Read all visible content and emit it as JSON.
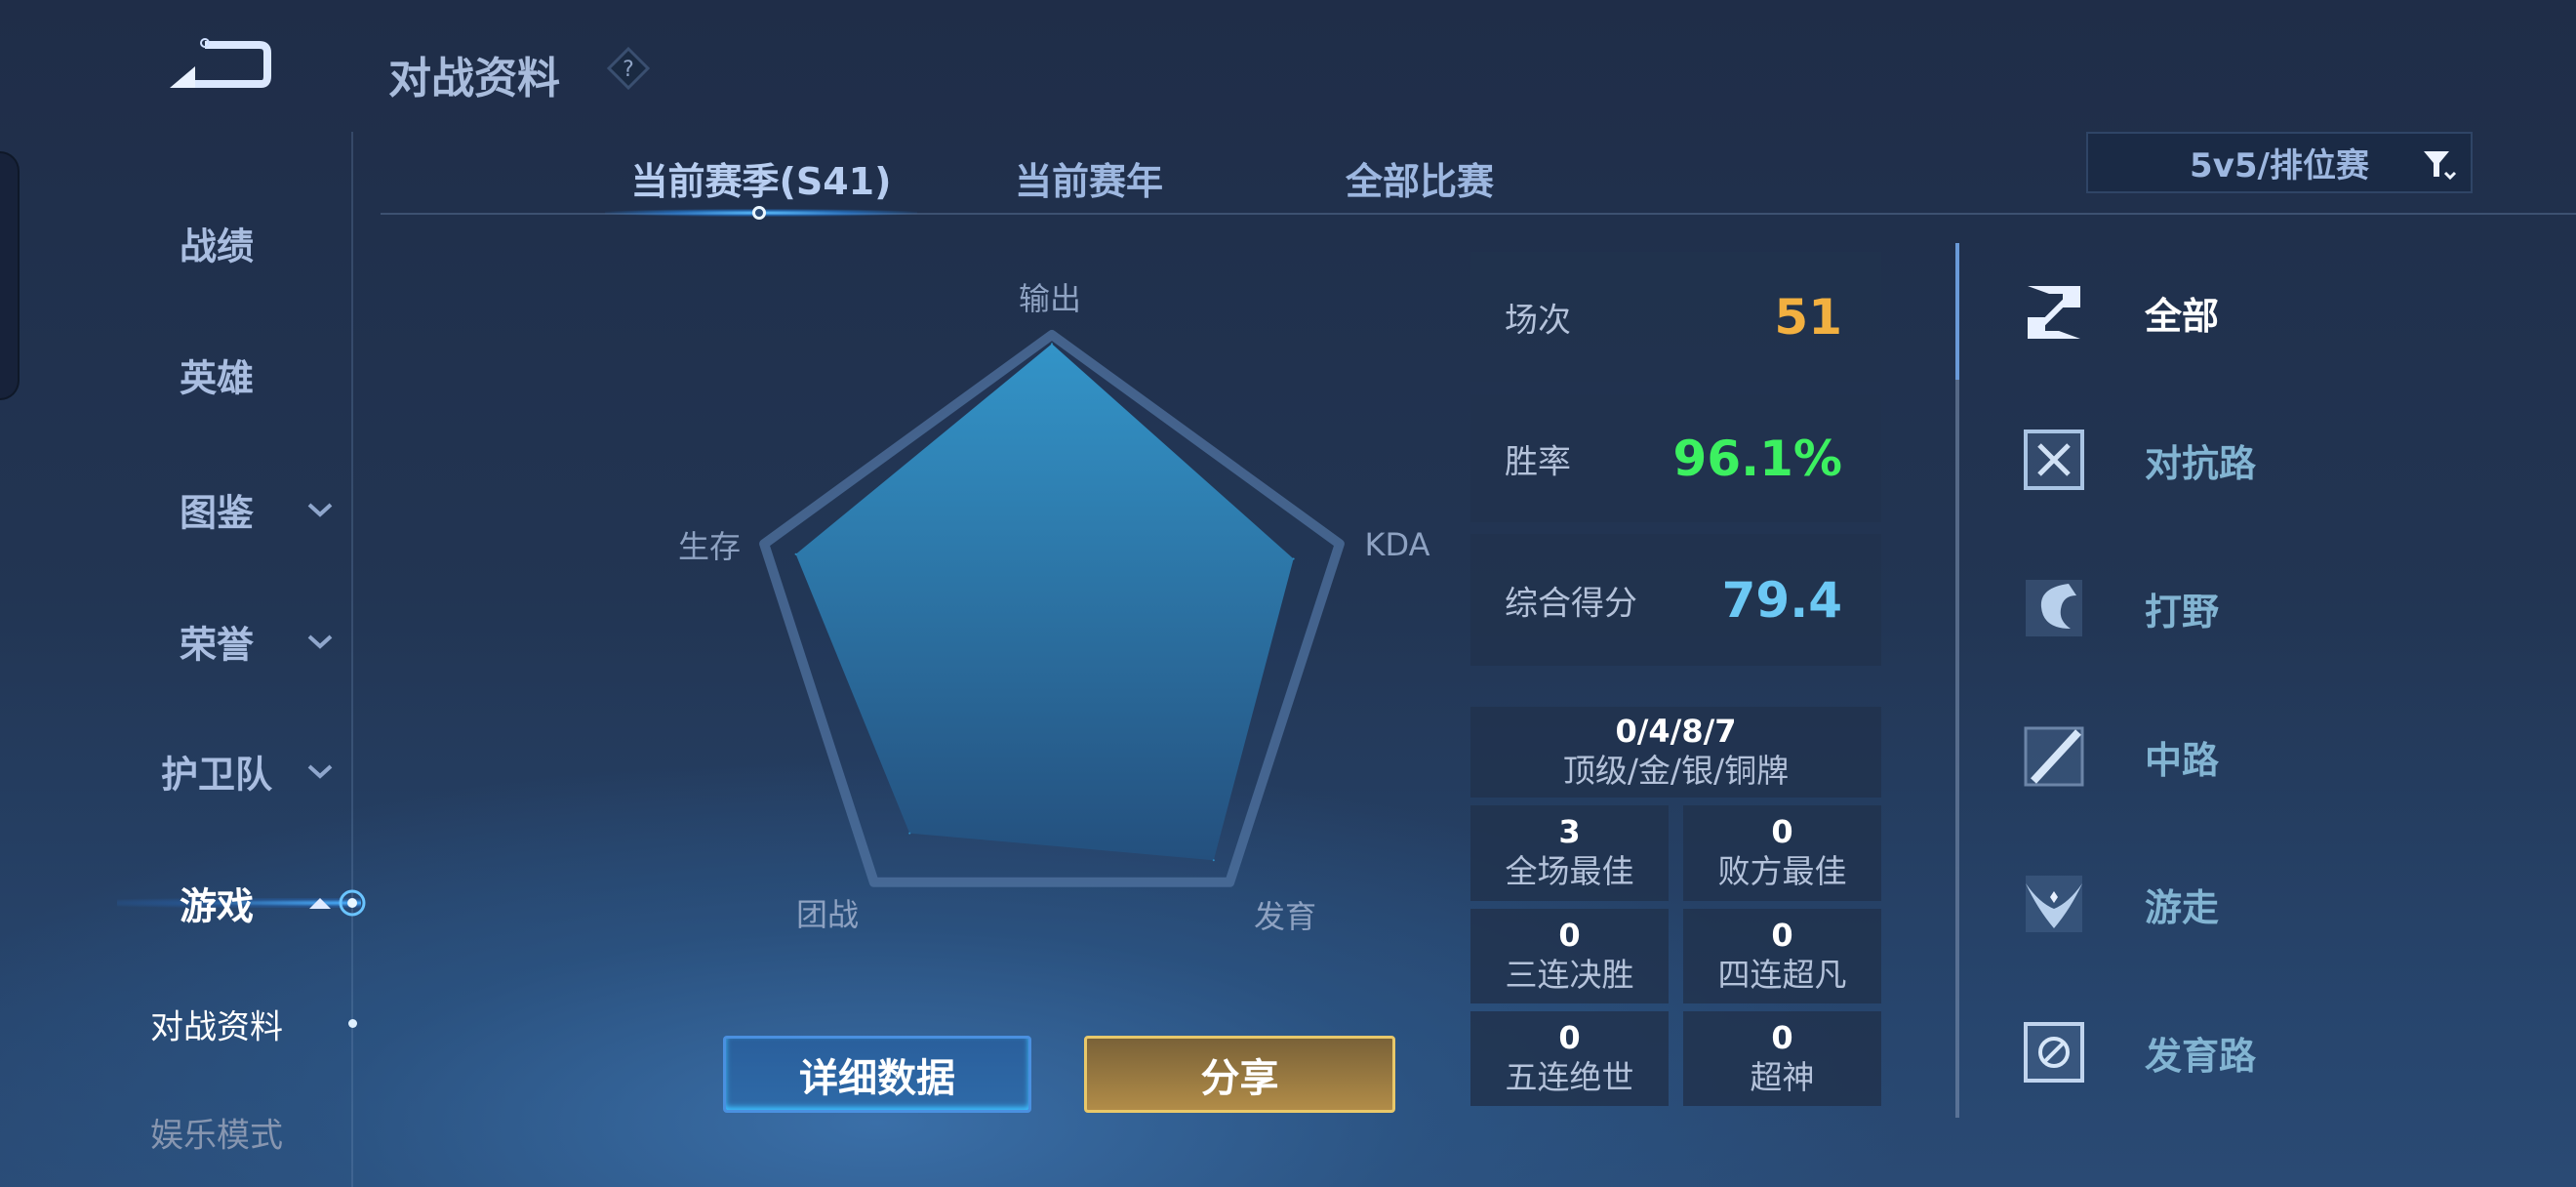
{
  "header": {
    "title": "对战资料",
    "help_icon": "question-diamond-icon",
    "back_icon": "back-arrow-icon"
  },
  "sidebar": {
    "items": [
      {
        "label": "战绩",
        "expandable": false
      },
      {
        "label": "英雄",
        "expandable": false
      },
      {
        "label": "图鉴",
        "expandable": true
      },
      {
        "label": "荣誉",
        "expandable": true
      },
      {
        "label": "护卫队",
        "expandable": true
      },
      {
        "label": "游戏",
        "expandable": true,
        "expanded": true,
        "active": true
      },
      {
        "label": "对战资料",
        "sub": true,
        "selected": true
      },
      {
        "label": "娱乐模式",
        "sub": true
      }
    ]
  },
  "tabs": [
    {
      "label": "当前赛季(S41)",
      "active": true
    },
    {
      "label": "当前赛年"
    },
    {
      "label": "全部比赛"
    }
  ],
  "filter": {
    "value": "5v5/排位赛",
    "icon": "funnel-icon"
  },
  "chart_data": {
    "type": "radar",
    "axes": [
      "输出",
      "KDA",
      "发育",
      "团战",
      "生存"
    ],
    "values": [
      0.97,
      0.84,
      0.91,
      0.8,
      0.89
    ],
    "range": [
      0,
      1
    ],
    "fill_color": "#2f8cc0"
  },
  "stats": [
    {
      "label": "场次",
      "value": "51",
      "color": "#f2b040"
    },
    {
      "label": "胜率",
      "value": "96.1%",
      "color": "#3cf060"
    },
    {
      "label": "综合得分",
      "value": "79.4",
      "color": "#6cc8f4"
    }
  ],
  "medals": {
    "value": "0/4/8/7",
    "label": "顶级/金/银/铜牌"
  },
  "honors": [
    {
      "value": "3",
      "label": "全场最佳"
    },
    {
      "value": "0",
      "label": "败方最佳"
    },
    {
      "value": "0",
      "label": "三连决胜"
    },
    {
      "value": "0",
      "label": "四连超凡"
    },
    {
      "value": "0",
      "label": "五连绝世"
    },
    {
      "value": "0",
      "label": "超神"
    }
  ],
  "buttons": {
    "detail": "详细数据",
    "share": "分享"
  },
  "roles": [
    {
      "label": "全部",
      "icon": "all-roles-icon",
      "active": true
    },
    {
      "label": "对抗路",
      "icon": "clash-lane-icon"
    },
    {
      "label": "打野",
      "icon": "jungle-dragon-icon"
    },
    {
      "label": "中路",
      "icon": "mid-lane-icon"
    },
    {
      "label": "游走",
      "icon": "roam-wings-icon"
    },
    {
      "label": "发育路",
      "icon": "farm-lane-icon"
    }
  ]
}
